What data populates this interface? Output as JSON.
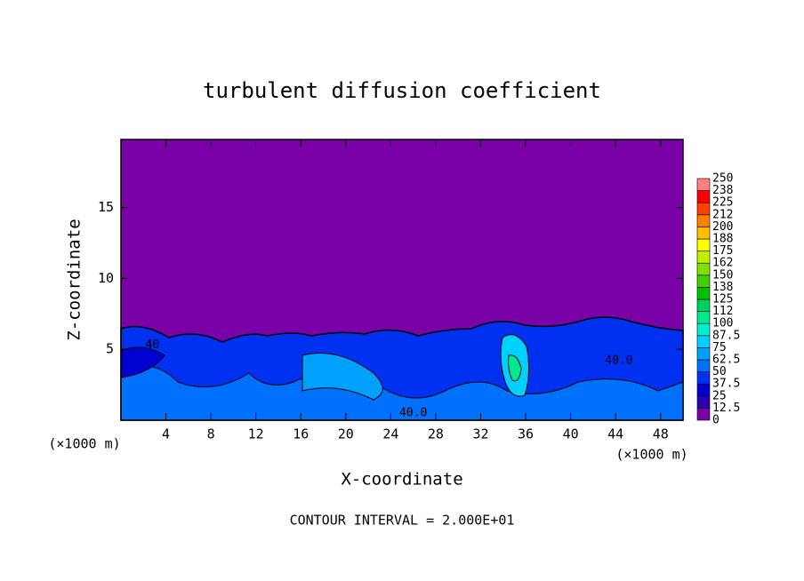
{
  "chart_data": {
    "type": "contour",
    "title": "turbulent diffusion coefficient",
    "xlabel": "X-coordinate",
    "ylabel": "Z-coordinate",
    "x_unit": "(×1000 m)",
    "footer": "CONTOUR INTERVAL = 2.000E+01",
    "xlim": [
      0,
      50
    ],
    "ylim": [
      0,
      19.8
    ],
    "xticks": [
      4,
      8,
      12,
      16,
      20,
      24,
      28,
      32,
      36,
      40,
      44,
      48
    ],
    "yticks": [
      5,
      10,
      15
    ],
    "contour_labels": [
      {
        "text": "40.0",
        "x": 26,
        "z": 0.5
      },
      {
        "text": "40",
        "x": 2.8,
        "z": 5.3
      },
      {
        "text": "40.0",
        "x": 44.3,
        "z": 4.2
      }
    ],
    "colorbar": {
      "levels": [
        0,
        12.5,
        25,
        37.5,
        50,
        62.5,
        75,
        87.5,
        100,
        112,
        125,
        138,
        150,
        162,
        175,
        188,
        200,
        212,
        225,
        238,
        250
      ],
      "colors": [
        "#7a00a8",
        "#2a00b0",
        "#0000d0",
        "#0030f0",
        "#0070ff",
        "#00a0ff",
        "#00d0ff",
        "#00f0d0",
        "#00e890",
        "#00d060",
        "#00c000",
        "#40d000",
        "#80e000",
        "#c0f000",
        "#ffff00",
        "#ffc000",
        "#ff8000",
        "#ff4000",
        "#ff0000",
        "#ff8080"
      ]
    }
  }
}
